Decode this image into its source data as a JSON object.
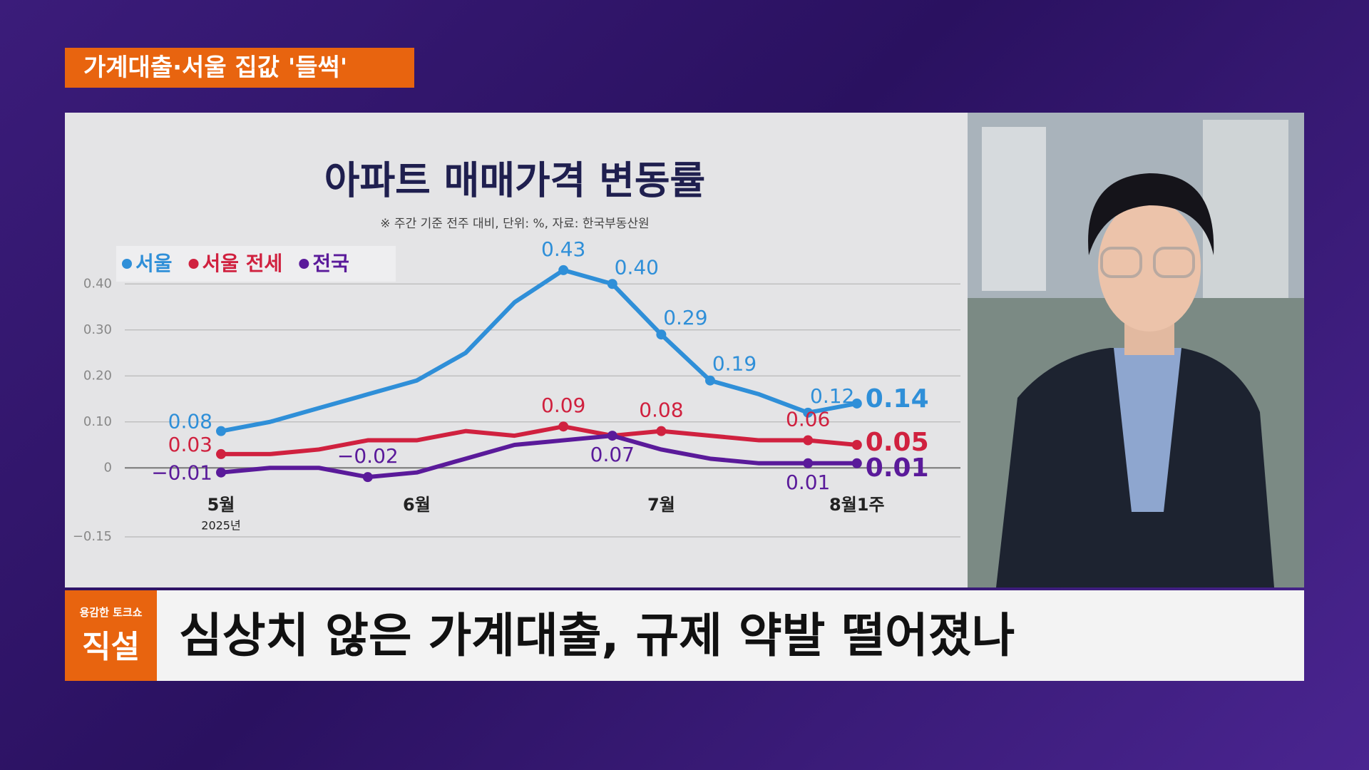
{
  "header": {
    "tag": "가계대출·서울 집값 '들썩'"
  },
  "lower_third": {
    "show": "용감한 토크쇼",
    "segment": "직설",
    "headline": "심상치 않은 가계대출, 규제 약발 떨어졌나"
  },
  "chart_data": {
    "type": "line",
    "title": "아파트 매매가격 변동률",
    "subtitle": "※ 주간 기준 전주 대비, 단위: %, 자료: 한국부동산원",
    "categories": [
      "5월",
      null,
      null,
      null,
      "6월",
      null,
      null,
      null,
      null,
      "7월",
      null,
      null,
      null,
      "8월1주"
    ],
    "year_label": "2025년",
    "series": [
      {
        "name": "서울",
        "color": "#2f8fd8",
        "values": [
          0.08,
          0.1,
          0.13,
          0.16,
          0.19,
          0.25,
          0.36,
          0.43,
          0.4,
          0.29,
          0.19,
          0.16,
          0.12,
          0.14
        ],
        "value_labels": [
          "0.08",
          null,
          null,
          null,
          null,
          null,
          null,
          "0.43",
          "0.40",
          "0.29",
          "0.19",
          null,
          "0.12",
          "0.14"
        ]
      },
      {
        "name": "서울 전세",
        "color": "#d0213f",
        "values": [
          0.03,
          0.03,
          0.04,
          0.06,
          0.06,
          0.08,
          0.07,
          0.09,
          0.07,
          0.08,
          0.07,
          0.06,
          0.06,
          0.05
        ],
        "value_labels": [
          "0.03",
          null,
          null,
          null,
          null,
          null,
          null,
          "0.09",
          null,
          "0.08",
          null,
          null,
          "0.06",
          "0.05"
        ]
      },
      {
        "name": "전국",
        "color": "#5a1a9a",
        "values": [
          -0.01,
          0.0,
          0.0,
          -0.02,
          -0.01,
          0.02,
          0.05,
          0.06,
          0.07,
          0.04,
          0.02,
          0.01,
          0.01,
          0.01
        ],
        "value_labels": [
          "−0.01",
          null,
          null,
          "−0.02",
          null,
          null,
          null,
          null,
          "0.07",
          null,
          null,
          null,
          "0.01",
          "0.01"
        ]
      }
    ],
    "ylim": [
      -0.15,
      0.45
    ],
    "yticks": [
      {
        "value": 0.4,
        "label": "0.40"
      },
      {
        "value": 0.3,
        "label": "0.30"
      },
      {
        "value": 0.2,
        "label": "0.20"
      },
      {
        "value": 0.1,
        "label": "0.10"
      },
      0,
      {
        "value": -0.15,
        "label": "−0.15"
      }
    ],
    "grid": true
  }
}
